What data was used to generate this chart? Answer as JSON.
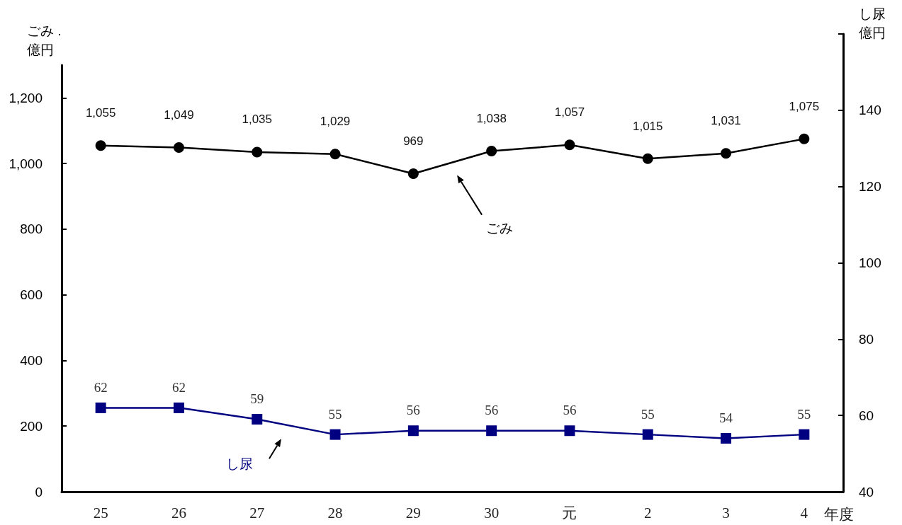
{
  "chart_data": {
    "type": "line",
    "xlabel": "年度",
    "ylabel": "ごみ .億円",
    "y2label": "し尿億円",
    "categories": [
      "25",
      "26",
      "27",
      "28",
      "29",
      "30",
      "元",
      "2",
      "3",
      "4"
    ],
    "series": [
      {
        "name": "ごみ",
        "color": "#000000",
        "marker": "circle",
        "values": [
          1055,
          1049,
          1035,
          1029,
          969,
          1038,
          1057,
          1015,
          1031,
          1075
        ],
        "value_labels": [
          "1,055",
          "1,049",
          "1,035",
          "1,029",
          "969",
          "1,038",
          "1,057",
          "1,015",
          "1,031",
          "1,075"
        ]
      },
      {
        "name": "し尿",
        "color": "#000080",
        "marker": "square",
        "axis": "y2",
        "values": [
          62,
          62,
          59,
          55,
          56,
          56,
          56,
          55,
          54,
          55
        ],
        "value_labels": [
          "62",
          "62",
          "59",
          "55",
          "56",
          "56",
          "56",
          "55",
          "54",
          "55"
        ]
      }
    ],
    "ylim": [
      0,
      1300
    ],
    "yticks": [
      0,
      200,
      400,
      600,
      800,
      {
        "value": 1000,
        "label": "1,000"
      },
      {
        "value": 1200,
        "label": "1,200"
      }
    ],
    "y2lim": [
      40,
      160
    ],
    "y2ticks": [
      40,
      60,
      80,
      100,
      120,
      140,
      {
        "value": 160,
        "label": null
      }
    ],
    "line_style": "solid"
  }
}
